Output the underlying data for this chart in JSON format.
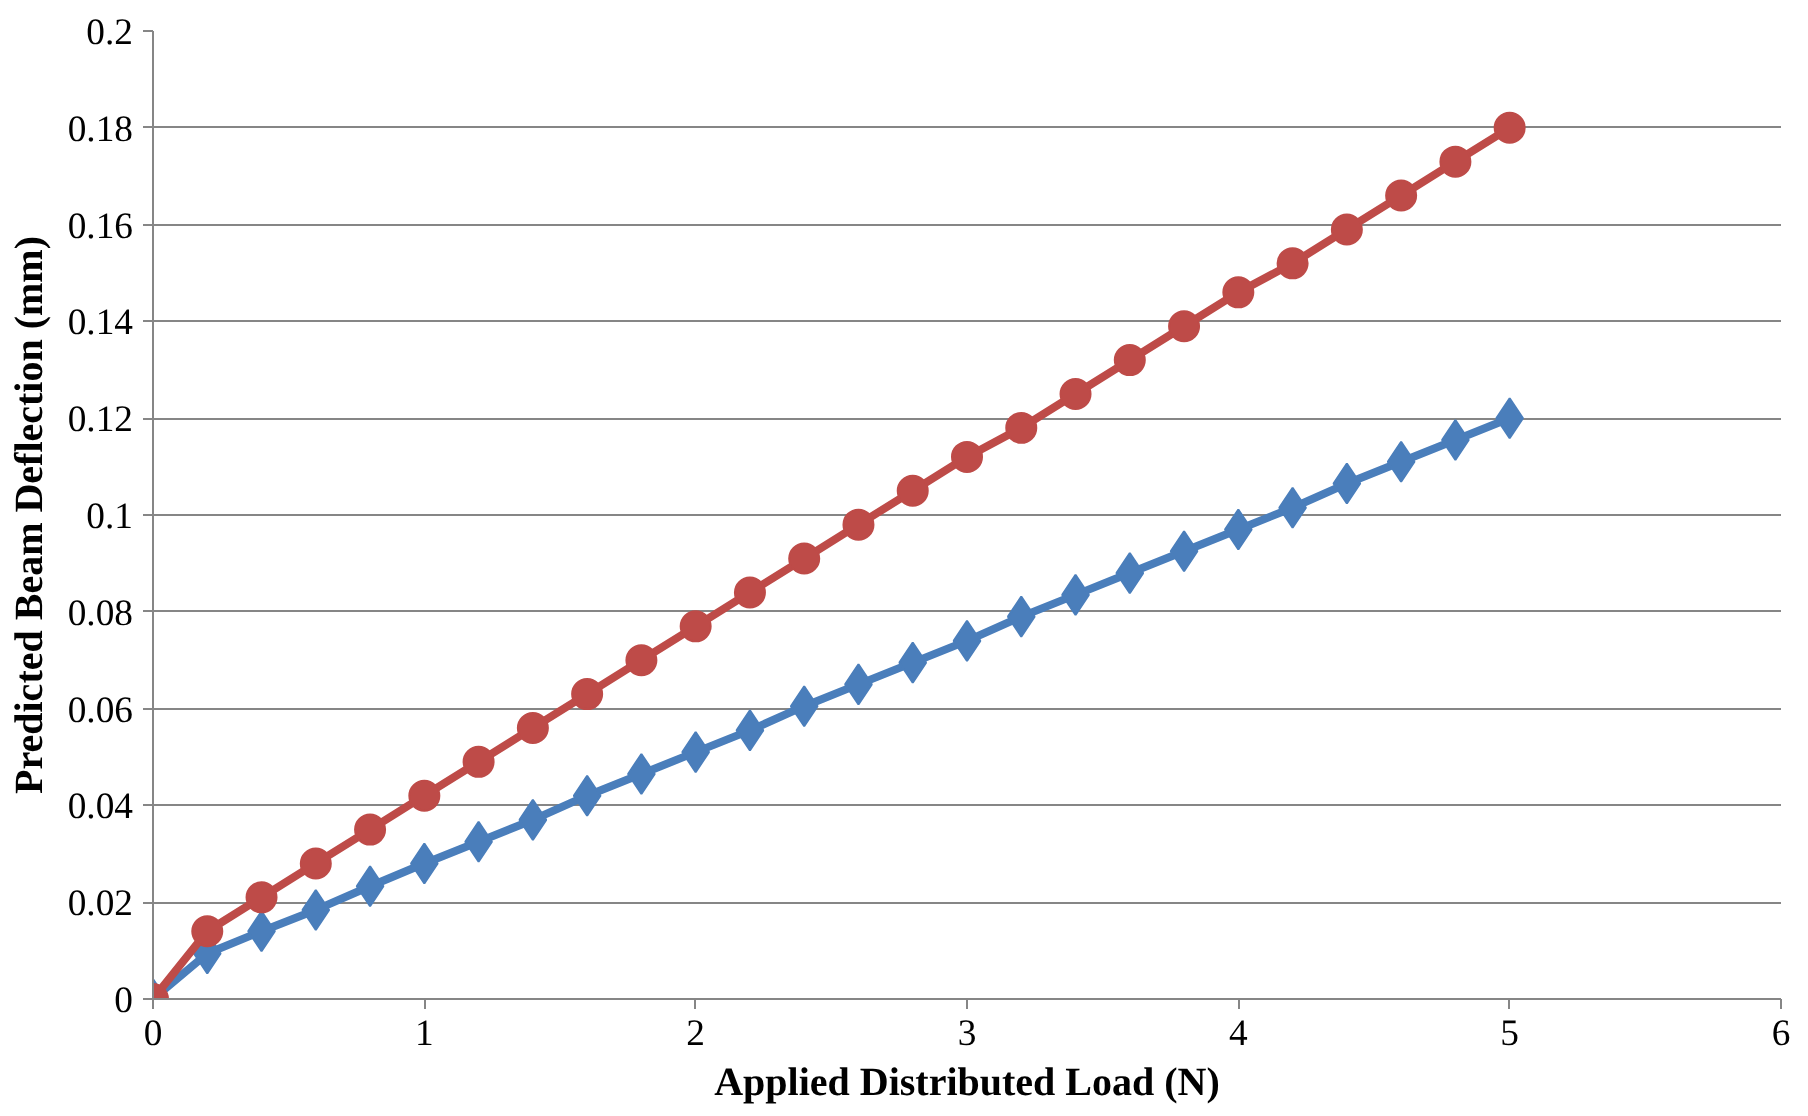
{
  "chart_data": {
    "type": "line",
    "xlabel": "Applied Distributed Load (N)",
    "ylabel": "Predicted Beam Deflection (mm)",
    "x": [
      0,
      0.2,
      0.4,
      0.6,
      0.8,
      1,
      1.2,
      1.4,
      1.6,
      1.8,
      2,
      2.2,
      2.4,
      2.6,
      2.8,
      3,
      3.2,
      3.4,
      3.6,
      3.8,
      4,
      4.2,
      4.4,
      4.6,
      4.8,
      5
    ],
    "series": [
      {
        "color": "#4a7ebb",
        "marker": "diamond",
        "values": [
          0,
          0.0094,
          0.014,
          0.0184,
          0.0233,
          0.028,
          0.0325,
          0.037,
          0.042,
          0.0465,
          0.051,
          0.0555,
          0.0605,
          0.065,
          0.0695,
          0.074,
          0.079,
          0.0835,
          0.088,
          0.0925,
          0.097,
          0.1015,
          0.1065,
          0.111,
          0.1155,
          0.12
        ]
      },
      {
        "color": "#be4b48",
        "marker": "circle",
        "values": [
          0,
          0.014,
          0.021,
          0.028,
          0.035,
          0.042,
          0.049,
          0.056,
          0.063,
          0.07,
          0.077,
          0.084,
          0.091,
          0.098,
          0.105,
          0.112,
          0.118,
          0.125,
          0.132,
          0.139,
          0.146,
          0.152,
          0.159,
          0.166,
          0.173,
          0.18
        ]
      }
    ],
    "xlim": [
      0,
      6
    ],
    "xticks": [
      0,
      1,
      2,
      3,
      4,
      5,
      6
    ],
    "ylim": [
      0,
      0.2
    ],
    "yticks": [
      0,
      0.02,
      0.04,
      0.06,
      0.08,
      0.1,
      0.12,
      0.14,
      0.16,
      0.18,
      0.2
    ],
    "grid": "y",
    "line_style": "solid"
  }
}
